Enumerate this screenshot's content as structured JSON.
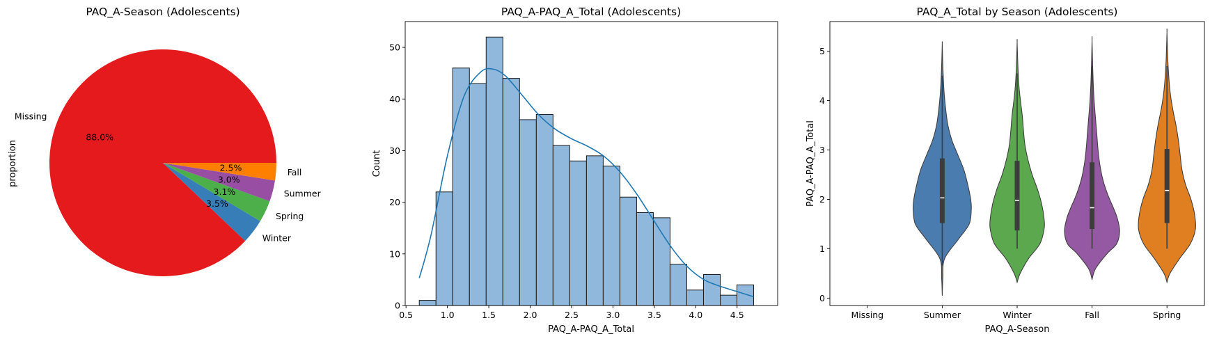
{
  "chart_data": [
    {
      "type": "pie",
      "title": "PAQ_A-Season (Adolescents)",
      "ylabel": "proportion",
      "slices": [
        {
          "label": "Missing",
          "value": 88.0,
          "pct_label": "88.0%",
          "color": "#e41a1c"
        },
        {
          "label": "Winter",
          "value": 3.5,
          "pct_label": "3.5%",
          "color": "#377eb8"
        },
        {
          "label": "Spring",
          "value": 3.1,
          "pct_label": "3.1%",
          "color": "#4daf4a"
        },
        {
          "label": "Summer",
          "value": 3.0,
          "pct_label": "3.0%",
          "color": "#984ea3"
        },
        {
          "label": "Fall",
          "value": 2.5,
          "pct_label": "2.5%",
          "color": "#ff7f00"
        }
      ]
    },
    {
      "type": "bar",
      "title": "PAQ_A-PAQ_A_Total (Adolescents)",
      "xlabel": "PAQ_A-PAQ_A_Total",
      "ylabel": "Count",
      "xlim": [
        0.49,
        4.99
      ],
      "ylim": [
        0,
        55
      ],
      "xticks": [
        0.5,
        1.0,
        1.5,
        2.0,
        2.5,
        3.0,
        3.5,
        4.0,
        4.5
      ],
      "xtick_labels": [
        "0.5",
        "1.0",
        "1.5",
        "2.0",
        "2.5",
        "3.0",
        "3.5",
        "4.0",
        "4.5"
      ],
      "yticks": [
        0,
        10,
        20,
        30,
        40,
        50
      ],
      "ytick_labels": [
        "0",
        "10",
        "20",
        "30",
        "40",
        "50"
      ],
      "bin_edges": [
        0.66,
        0.862,
        1.064,
        1.266,
        1.468,
        1.67,
        1.872,
        2.074,
        2.276,
        2.478,
        2.68,
        2.882,
        3.084,
        3.286,
        3.488,
        3.69,
        3.892,
        4.094,
        4.296,
        4.498,
        4.7
      ],
      "counts": [
        1,
        22,
        46,
        43,
        52,
        44,
        36,
        37,
        31,
        28,
        29,
        27,
        21,
        18,
        17,
        8,
        3,
        6,
        2,
        4
      ],
      "bar_color": "#8fb8dc",
      "kde_color": "#1f77b4",
      "kde": {
        "x": [
          0.66,
          0.8,
          1.0,
          1.2,
          1.4,
          1.55,
          1.7,
          1.9,
          2.1,
          2.3,
          2.5,
          2.7,
          2.9,
          3.1,
          3.3,
          3.5,
          3.7,
          3.9,
          4.1,
          4.3,
          4.5,
          4.7
        ],
        "y": [
          5.3,
          13.5,
          29.0,
          40.5,
          45.2,
          45.8,
          44.5,
          40.8,
          37.0,
          34.2,
          32.3,
          30.8,
          28.8,
          25.6,
          21.3,
          16.3,
          11.4,
          7.5,
          5.0,
          3.7,
          2.7,
          1.7
        ]
      }
    },
    {
      "type": "violin",
      "title": "PAQ_A_Total by Season (Adolescents)",
      "xlabel": "PAQ_A-Season",
      "ylabel": "PAQ_A-PAQ_A_Total",
      "categories": [
        "Missing",
        "Summer",
        "Winter",
        "Fall",
        "Spring"
      ],
      "ylim": [
        -0.15,
        5.6
      ],
      "yticks": [
        0,
        1,
        2,
        3,
        4,
        5
      ],
      "ytick_labels": [
        "0",
        "1",
        "2",
        "3",
        "4",
        "5"
      ],
      "violins": [
        {
          "category": "Missing",
          "empty": true
        },
        {
          "category": "Summer",
          "color": "#4a7cb0",
          "q1": 1.52,
          "median": 2.03,
          "q3": 2.83,
          "whisker_low": 0.66,
          "whisker_high": 4.5,
          "profile": [
            [
              0.05,
              0
            ],
            [
              0.4,
              0.02
            ],
            [
              0.8,
              0.08
            ],
            [
              1.2,
              0.55
            ],
            [
              1.5,
              0.9
            ],
            [
              1.8,
              0.97
            ],
            [
              2.0,
              0.95
            ],
            [
              2.3,
              0.85
            ],
            [
              2.6,
              0.72
            ],
            [
              2.9,
              0.52
            ],
            [
              3.2,
              0.32
            ],
            [
              3.5,
              0.19
            ],
            [
              3.8,
              0.12
            ],
            [
              4.1,
              0.07
            ],
            [
              4.4,
              0.04
            ],
            [
              4.8,
              0.015
            ],
            [
              5.15,
              0
            ]
          ]
        },
        {
          "category": "Winter",
          "color": "#5ba84f",
          "q1": 1.37,
          "median": 1.98,
          "q3": 2.78,
          "whisker_low": 1.0,
          "whisker_high": 4.55,
          "profile": [
            [
              0.32,
              0
            ],
            [
              0.5,
              0.1
            ],
            [
              0.8,
              0.38
            ],
            [
              1.1,
              0.76
            ],
            [
              1.4,
              0.9
            ],
            [
              1.6,
              0.9
            ],
            [
              1.9,
              0.82
            ],
            [
              2.2,
              0.68
            ],
            [
              2.5,
              0.5
            ],
            [
              2.8,
              0.36
            ],
            [
              3.1,
              0.26
            ],
            [
              3.4,
              0.21
            ],
            [
              3.7,
              0.17
            ],
            [
              4.0,
              0.11
            ],
            [
              4.3,
              0.06
            ],
            [
              4.7,
              0.025
            ],
            [
              5.18,
              0
            ]
          ]
        },
        {
          "category": "Fall",
          "color": "#9558a2",
          "q1": 1.4,
          "median": 1.83,
          "q3": 2.75,
          "whisker_low": 1.0,
          "whisker_high": 4.7,
          "profile": [
            [
              0.38,
              0
            ],
            [
              0.6,
              0.12
            ],
            [
              0.9,
              0.5
            ],
            [
              1.1,
              0.82
            ],
            [
              1.35,
              0.92
            ],
            [
              1.6,
              0.85
            ],
            [
              1.8,
              0.73
            ],
            [
              2.1,
              0.52
            ],
            [
              2.4,
              0.36
            ],
            [
              2.7,
              0.26
            ],
            [
              3.0,
              0.2
            ],
            [
              3.3,
              0.16
            ],
            [
              3.6,
              0.12
            ],
            [
              3.9,
              0.08
            ],
            [
              4.2,
              0.05
            ],
            [
              4.6,
              0.025
            ],
            [
              5.22,
              0
            ]
          ]
        },
        {
          "category": "Spring",
          "color": "#e07f22",
          "q1": 1.52,
          "median": 2.18,
          "q3": 3.02,
          "whisker_low": 1.0,
          "whisker_high": 4.7,
          "profile": [
            [
              0.32,
              0
            ],
            [
              0.5,
              0.1
            ],
            [
              0.8,
              0.42
            ],
            [
              1.1,
              0.78
            ],
            [
              1.4,
              0.95
            ],
            [
              1.7,
              0.92
            ],
            [
              2.0,
              0.8
            ],
            [
              2.3,
              0.62
            ],
            [
              2.6,
              0.5
            ],
            [
              2.9,
              0.44
            ],
            [
              3.2,
              0.38
            ],
            [
              3.5,
              0.3
            ],
            [
              3.8,
              0.2
            ],
            [
              4.1,
              0.12
            ],
            [
              4.4,
              0.07
            ],
            [
              4.8,
              0.03
            ],
            [
              5.38,
              0
            ]
          ]
        }
      ]
    }
  ]
}
